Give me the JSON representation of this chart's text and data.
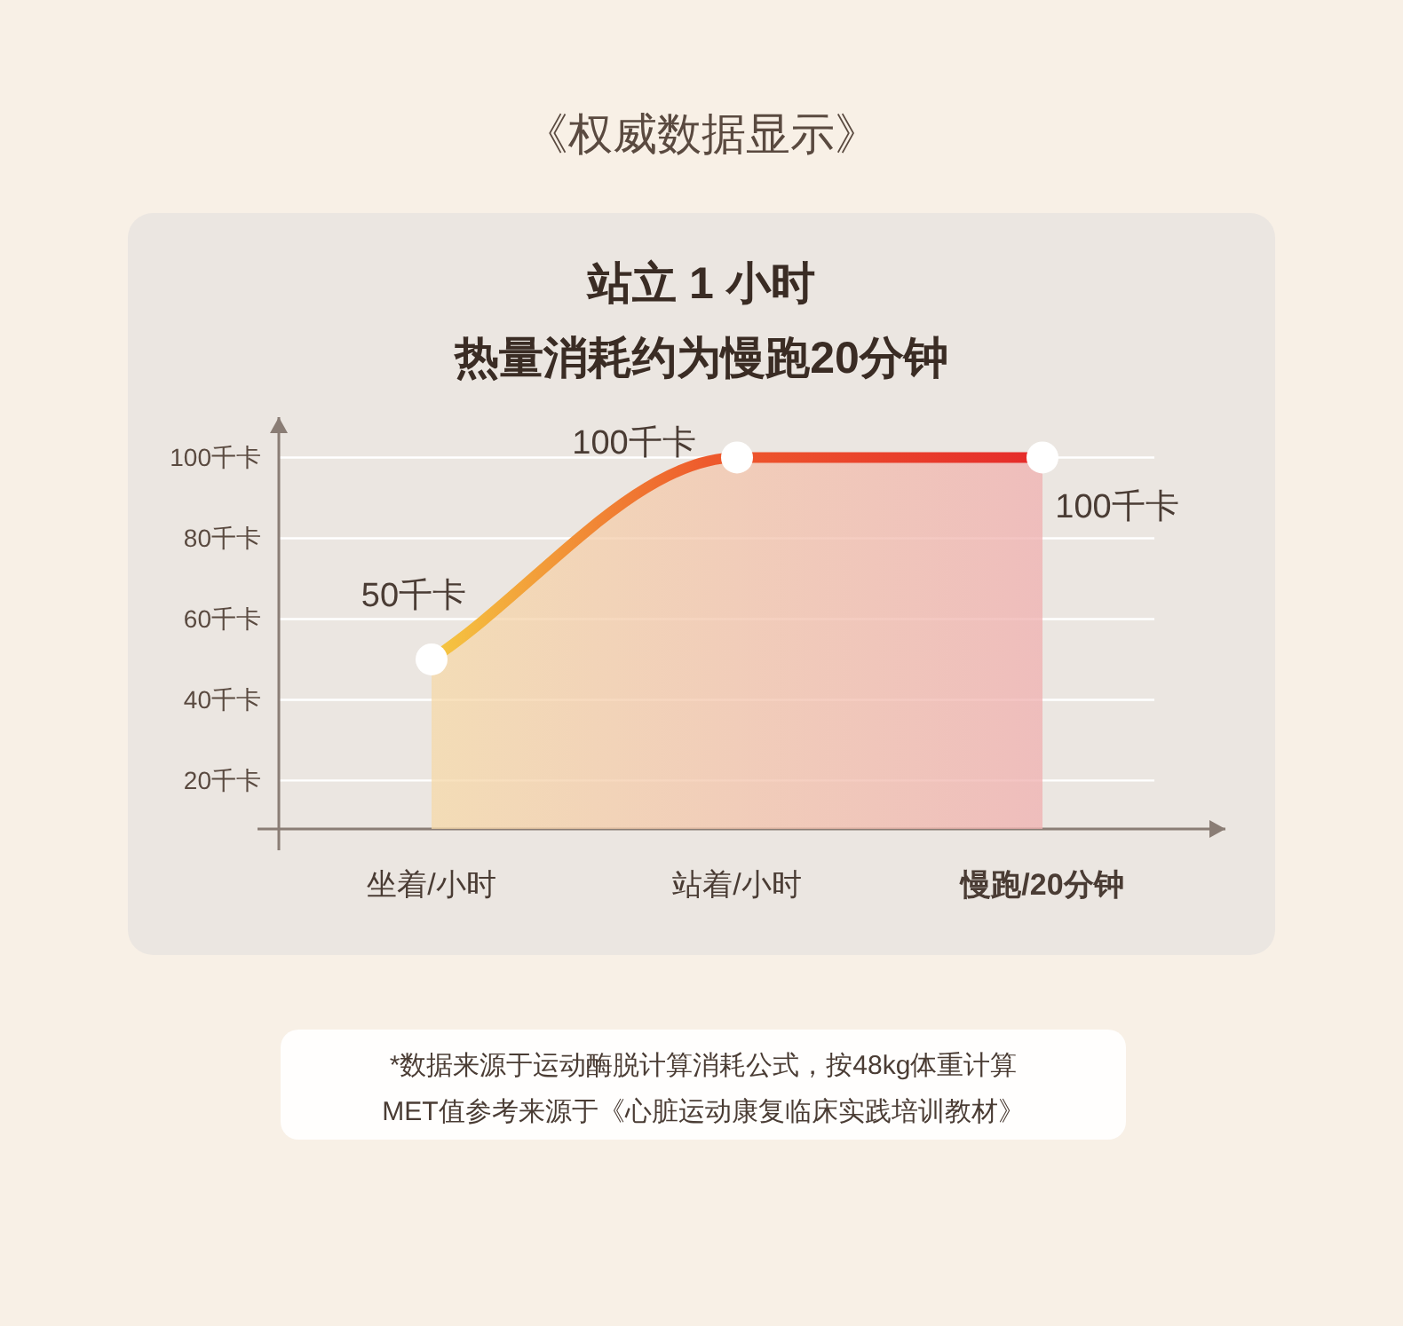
{
  "chart_data": {
    "type": "area",
    "title": "站立 1 小时",
    "subtitle": "热量消耗约为慢跑20分钟",
    "categories": [
      "坐着/小时",
      "站着/小时",
      "慢跑/20分钟"
    ],
    "series": [
      {
        "color": "#e52a2a",
        "values": [
          50,
          100,
          100
        ],
        "value_labels": [
          "50千卡",
          "100千卡",
          "100千卡"
        ]
      }
    ],
    "ylim": [
      8,
      110
    ],
    "yticks": [
      {
        "value": 20,
        "label": "20千卡"
      },
      {
        "value": 40,
        "label": "40千卡"
      },
      {
        "value": 60,
        "label": "60千卡"
      },
      {
        "value": 80,
        "label": "80千卡"
      },
      {
        "value": 100,
        "label": "100千卡"
      }
    ],
    "grid": "y",
    "marker": "circle",
    "line_style": "solid",
    "annotations": [
      "《权威数据显示》",
      "*数据来源于运动酶脱计算消耗公式，按48kg体重计算",
      "MET值参考来源于《心脏运动康复临床实践培训教材》"
    ]
  }
}
